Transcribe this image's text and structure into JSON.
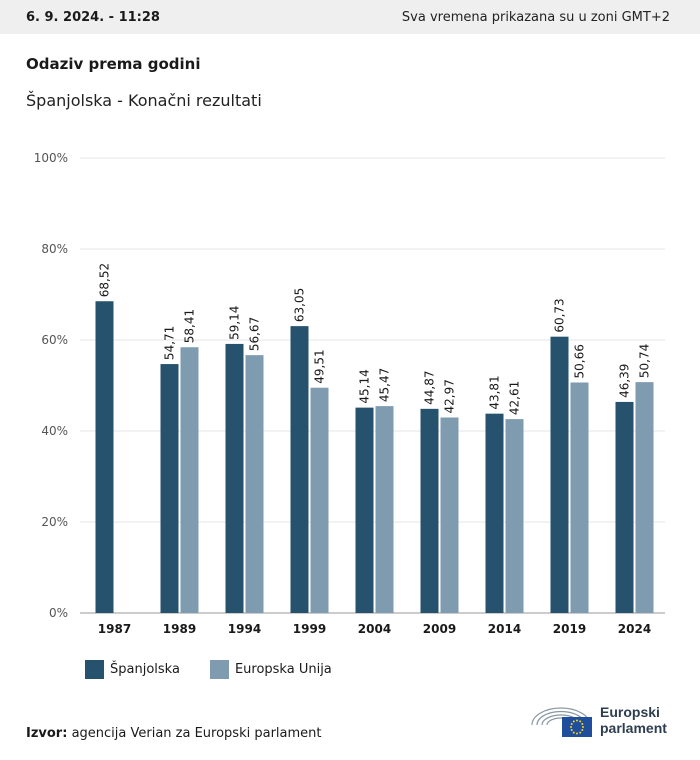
{
  "header": {
    "date": "6. 9. 2024. - 11:28",
    "timezone_note": "Sva vremena prikazana su u zoni GMT+2"
  },
  "title": "Odaziv prema godini",
  "subtitle": "Španjolska - Konačni rezultati",
  "colors": {
    "spain": "#27526e",
    "eu": "#7f9baf",
    "grid": "#e6e6e6",
    "axis": "#999999"
  },
  "chart_data": {
    "type": "bar",
    "categories": [
      "1987",
      "1989",
      "1994",
      "1999",
      "2004",
      "2009",
      "2014",
      "2019",
      "2024"
    ],
    "series": [
      {
        "name": "Španjolska",
        "values": [
          68.52,
          54.71,
          59.14,
          63.05,
          45.14,
          44.87,
          43.81,
          60.73,
          46.39
        ],
        "labels": [
          "68,52",
          "54,71",
          "59,14",
          "63,05",
          "45,14",
          "44,87",
          "43,81",
          "60,73",
          "46,39"
        ]
      },
      {
        "name": "Europska Unija",
        "values": [
          null,
          58.41,
          56.67,
          49.51,
          45.47,
          42.97,
          42.61,
          50.66,
          50.74
        ],
        "labels": [
          "",
          "58,41",
          "56,67",
          "49,51",
          "45,47",
          "42,97",
          "42,61",
          "50,66",
          "50,74"
        ]
      }
    ],
    "yticks": [
      0,
      20,
      40,
      60,
      80,
      100
    ],
    "ytick_labels": [
      "0%",
      "20%",
      "40%",
      "60%",
      "80%",
      "100%"
    ],
    "ylim": [
      0,
      100
    ],
    "grid": true,
    "legend": "bottom-left"
  },
  "legend": {
    "spain_label": "Španjolska",
    "eu_label": "Europska Unija"
  },
  "source": {
    "label": "Izvor:",
    "text": "agencija Verian za Europski parlament"
  },
  "logo": {
    "line1": "Europski",
    "line2": "parlament"
  }
}
